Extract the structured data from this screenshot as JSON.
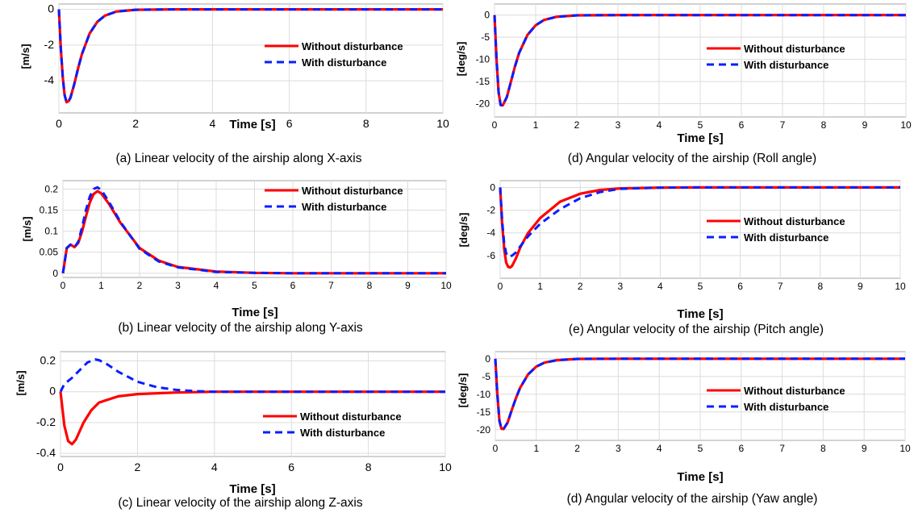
{
  "colors": {
    "without": "#ff0000",
    "with": "#0a1eff",
    "grid": "#dcdcdc",
    "axes": "#a6a6a6"
  },
  "chart_data": [
    {
      "type": "line",
      "caption": "(a) Linear velocity of the airship along X-axis",
      "xlabel": "Time [s]",
      "ylabel": "[m/s]",
      "xlim": [
        0,
        10
      ],
      "ylim": [
        -5.8,
        0.3
      ],
      "xticks": [
        0,
        2,
        4,
        6,
        8,
        10
      ],
      "yticks": [
        0,
        -2,
        -4
      ],
      "grid": true,
      "legend_position": "right",
      "series": [
        {
          "name": "Without disturbance",
          "x": [
            0,
            0.05,
            0.1,
            0.15,
            0.2,
            0.25,
            0.3,
            0.4,
            0.5,
            0.6,
            0.8,
            1.0,
            1.2,
            1.5,
            2.0,
            3.0,
            5.0,
            10.0
          ],
          "y": [
            0,
            -2.2,
            -3.8,
            -4.8,
            -5.2,
            -5.15,
            -4.95,
            -4.2,
            -3.3,
            -2.5,
            -1.35,
            -0.7,
            -0.35,
            -0.12,
            -0.02,
            0,
            0,
            0
          ]
        },
        {
          "name": "With disturbance",
          "x": [
            0,
            0.05,
            0.1,
            0.15,
            0.2,
            0.25,
            0.3,
            0.4,
            0.5,
            0.6,
            0.8,
            1.0,
            1.2,
            1.5,
            2.0,
            3.0,
            5.0,
            10.0
          ],
          "y": [
            0,
            -2.2,
            -3.8,
            -4.8,
            -5.2,
            -5.15,
            -4.95,
            -4.2,
            -3.3,
            -2.5,
            -1.35,
            -0.7,
            -0.35,
            -0.12,
            -0.02,
            0,
            0,
            0
          ]
        }
      ]
    },
    {
      "type": "line",
      "caption": "(b) Linear velocity of the airship along Y-axis",
      "xlabel": "Time [s]",
      "ylabel": "[m/s]",
      "xlim": [
        0,
        10
      ],
      "ylim": [
        -0.01,
        0.22
      ],
      "xticks": [
        0,
        1,
        2,
        3,
        4,
        5,
        6,
        7,
        8,
        9,
        10
      ],
      "yticks": [
        0,
        0.05,
        0.1,
        0.15,
        0.2
      ],
      "grid": true,
      "legend_position": "top-right",
      "series": [
        {
          "name": "Without disturbance",
          "x": [
            0,
            0.1,
            0.2,
            0.3,
            0.4,
            0.5,
            0.6,
            0.7,
            0.8,
            0.9,
            1.0,
            1.2,
            1.5,
            2.0,
            2.5,
            3.0,
            4.0,
            5.0,
            6.0,
            10.0
          ],
          "y": [
            0,
            0.06,
            0.068,
            0.062,
            0.072,
            0.1,
            0.135,
            0.168,
            0.188,
            0.195,
            0.19,
            0.165,
            0.12,
            0.06,
            0.03,
            0.015,
            0.004,
            0.001,
            0,
            0
          ]
        },
        {
          "name": "With disturbance",
          "x": [
            0,
            0.1,
            0.2,
            0.3,
            0.4,
            0.5,
            0.6,
            0.7,
            0.8,
            0.9,
            1.0,
            1.2,
            1.5,
            2.0,
            2.5,
            3.0,
            4.0,
            5.0,
            6.0,
            10.0
          ],
          "y": [
            0,
            0.06,
            0.068,
            0.062,
            0.075,
            0.11,
            0.15,
            0.182,
            0.2,
            0.204,
            0.198,
            0.17,
            0.122,
            0.058,
            0.028,
            0.014,
            0.003,
            0.001,
            0,
            0
          ]
        }
      ]
    },
    {
      "type": "line",
      "caption": "(c) Linear velocity of the airship along Z-axis",
      "xlabel": "Time [s]",
      "ylabel": "[m/s]",
      "xlim": [
        0,
        10
      ],
      "ylim": [
        -0.42,
        0.26
      ],
      "xticks": [
        0,
        2,
        4,
        6,
        8,
        10
      ],
      "yticks": [
        0.2,
        0,
        -0.2,
        -0.4
      ],
      "grid": true,
      "legend_position": "bottom-right",
      "series": [
        {
          "name": "Without disturbance",
          "x": [
            0,
            0.1,
            0.2,
            0.3,
            0.4,
            0.6,
            0.8,
            1.0,
            1.5,
            2.0,
            3.0,
            4.0,
            10.0
          ],
          "y": [
            0,
            -0.22,
            -0.32,
            -0.34,
            -0.31,
            -0.2,
            -0.12,
            -0.07,
            -0.03,
            -0.015,
            -0.005,
            0,
            0
          ]
        },
        {
          "name": "With disturbance",
          "x": [
            0,
            0.1,
            0.3,
            0.5,
            0.7,
            0.9,
            1.0,
            1.2,
            1.5,
            2.0,
            2.5,
            3.0,
            3.5,
            4.0,
            10.0
          ],
          "y": [
            0,
            0.05,
            0.09,
            0.14,
            0.19,
            0.21,
            0.205,
            0.18,
            0.13,
            0.065,
            0.03,
            0.012,
            0.004,
            0,
            0
          ]
        }
      ]
    },
    {
      "type": "line",
      "caption": "(d) Angular velocity of the airship (Roll angle)",
      "xlabel": "Time [s]",
      "ylabel": "[deg/s]",
      "xlim": [
        0,
        10
      ],
      "ylim": [
        -23,
        2.5
      ],
      "xticks": [
        0,
        1,
        2,
        3,
        4,
        5,
        6,
        7,
        8,
        9,
        10
      ],
      "yticks": [
        0,
        -5,
        -10,
        -15,
        -20
      ],
      "grid": true,
      "legend_position": "right",
      "series": [
        {
          "name": "Without disturbance",
          "x": [
            0,
            0.05,
            0.1,
            0.15,
            0.2,
            0.3,
            0.4,
            0.5,
            0.6,
            0.8,
            1.0,
            1.2,
            1.5,
            2.0,
            3.0,
            10.0
          ],
          "y": [
            0,
            -10,
            -17.5,
            -20.3,
            -20.4,
            -18.5,
            -15,
            -11.5,
            -8.5,
            -4.5,
            -2.3,
            -1.1,
            -0.4,
            -0.05,
            0,
            0
          ]
        },
        {
          "name": "With disturbance",
          "x": [
            0,
            0.05,
            0.1,
            0.15,
            0.2,
            0.3,
            0.4,
            0.5,
            0.6,
            0.8,
            1.0,
            1.2,
            1.5,
            2.0,
            3.0,
            10.0
          ],
          "y": [
            0,
            -10,
            -17.5,
            -20.3,
            -20.4,
            -18.5,
            -15,
            -11.5,
            -8.5,
            -4.5,
            -2.3,
            -1.1,
            -0.4,
            -0.05,
            0,
            0
          ]
        }
      ]
    },
    {
      "type": "line",
      "caption": "(e) Angular velocity of the airship (Pitch angle)",
      "xlabel": "Time [s]",
      "ylabel": "[deg/s]",
      "xlim": [
        0,
        10
      ],
      "ylim": [
        -8,
        0.6
      ],
      "xticks": [
        0,
        1,
        2,
        3,
        4,
        5,
        6,
        7,
        8,
        9,
        10
      ],
      "yticks": [
        0,
        -2,
        -4,
        -6
      ],
      "grid": true,
      "legend_position": "right",
      "series": [
        {
          "name": "Without disturbance",
          "x": [
            0,
            0.05,
            0.1,
            0.15,
            0.2,
            0.25,
            0.3,
            0.4,
            0.5,
            0.7,
            1.0,
            1.5,
            2.0,
            2.5,
            3.0,
            4.0,
            5.0,
            10.0
          ],
          "y": [
            0,
            -3.2,
            -5.4,
            -6.6,
            -7.0,
            -7.05,
            -6.9,
            -6.2,
            -5.3,
            -4.0,
            -2.7,
            -1.25,
            -0.55,
            -0.22,
            -0.08,
            -0.01,
            0,
            0
          ]
        },
        {
          "name": "With disturbance",
          "x": [
            0,
            0.05,
            0.1,
            0.15,
            0.2,
            0.3,
            0.4,
            0.5,
            0.7,
            1.0,
            1.5,
            2.0,
            2.5,
            3.0,
            4.0,
            5.0,
            10.0
          ],
          "y": [
            0,
            -3.0,
            -4.9,
            -5.8,
            -6.1,
            -6.0,
            -5.7,
            -5.2,
            -4.3,
            -3.2,
            -1.9,
            -0.95,
            -0.4,
            -0.12,
            -0.01,
            0,
            0
          ]
        }
      ]
    },
    {
      "type": "line",
      "caption": "(d) Angular velocity of the airship (Yaw angle)",
      "xlabel": "Time [s]",
      "ylabel": "[deg/s]",
      "xlim": [
        0,
        10
      ],
      "ylim": [
        -23,
        2
      ],
      "xticks": [
        0,
        1,
        2,
        3,
        4,
        5,
        6,
        7,
        8,
        9,
        10
      ],
      "yticks": [
        0,
        -5,
        -10,
        -15,
        -20
      ],
      "grid": true,
      "legend_position": "right",
      "series": [
        {
          "name": "Without disturbance",
          "x": [
            0,
            0.05,
            0.1,
            0.15,
            0.2,
            0.3,
            0.4,
            0.5,
            0.6,
            0.8,
            1.0,
            1.2,
            1.5,
            2.0,
            3.0,
            10.0
          ],
          "y": [
            0,
            -10,
            -17.5,
            -19.7,
            -19.8,
            -18,
            -14.5,
            -11.2,
            -8.3,
            -4.4,
            -2.2,
            -1.1,
            -0.4,
            -0.05,
            0,
            0
          ]
        },
        {
          "name": "With disturbance",
          "x": [
            0,
            0.05,
            0.1,
            0.15,
            0.2,
            0.3,
            0.4,
            0.5,
            0.6,
            0.8,
            1.0,
            1.2,
            1.5,
            2.0,
            3.0,
            10.0
          ],
          "y": [
            0,
            -10,
            -17.5,
            -19.7,
            -19.8,
            -18,
            -14.5,
            -11.2,
            -8.3,
            -4.4,
            -2.2,
            -1.1,
            -0.4,
            -0.05,
            0,
            0
          ]
        }
      ]
    }
  ]
}
